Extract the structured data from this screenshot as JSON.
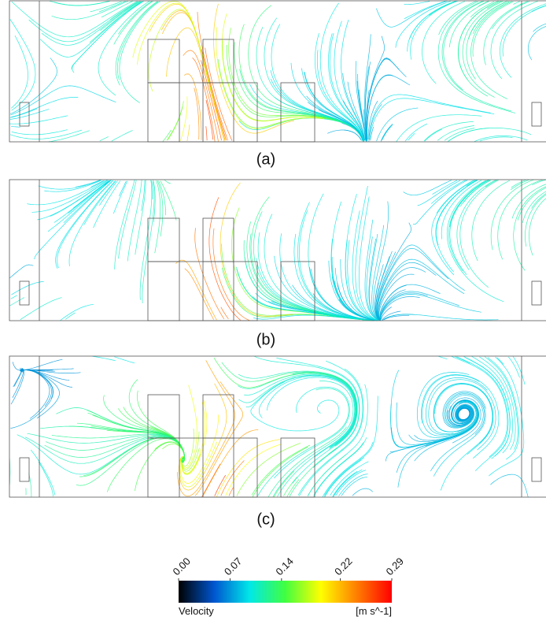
{
  "panels": [
    {
      "label": "(a)"
    },
    {
      "label": "(b)"
    },
    {
      "label": "(c)"
    }
  ],
  "colorbar": {
    "title": "Velocity",
    "unit": "[m s^-1]",
    "range": [
      0,
      0.29
    ],
    "ticks": [
      {
        "value": 0,
        "label": "0.00"
      },
      {
        "value": 0.07,
        "label": "0.07"
      },
      {
        "value": 0.14,
        "label": "0.14"
      },
      {
        "value": 0.22,
        "label": "0.22"
      },
      {
        "value": 0.29,
        "label": "0.29"
      }
    ],
    "colors": [
      "#000000",
      "#0055d0",
      "#00e8e8",
      "#40ff40",
      "#ffff00",
      "#ff8000",
      "#ff0000"
    ]
  }
}
